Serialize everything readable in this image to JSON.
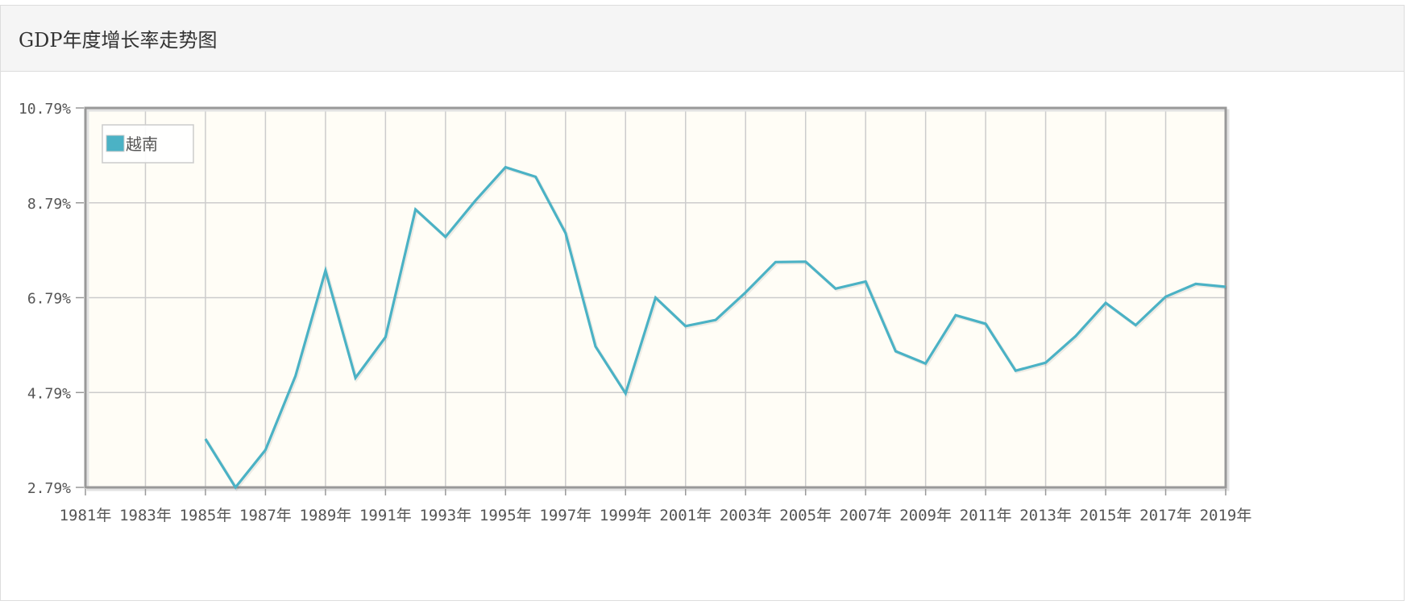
{
  "panel": {
    "title": "GDP年度增长率走势图"
  },
  "chart_data": {
    "type": "line",
    "title": "",
    "xlabel": "",
    "ylabel": "",
    "x": [
      1981,
      1982,
      1983,
      1984,
      1985,
      1986,
      1987,
      1988,
      1989,
      1990,
      1991,
      1992,
      1993,
      1994,
      1995,
      1996,
      1997,
      1998,
      1999,
      2000,
      2001,
      2002,
      2003,
      2004,
      2005,
      2006,
      2007,
      2008,
      2009,
      2010,
      2011,
      2012,
      2013,
      2014,
      2015,
      2016,
      2017,
      2018,
      2019
    ],
    "x_tick_labels": [
      "1981年",
      "1983年",
      "1985年",
      "1987年",
      "1989年",
      "1991年",
      "1993年",
      "1995年",
      "1997年",
      "1999年",
      "2001年",
      "2003年",
      "2005年",
      "2007年",
      "2009年",
      "2011年",
      "2013年",
      "2015年",
      "2017年",
      "2019年"
    ],
    "y_tick_labels": [
      "10.79%",
      "8.79%",
      "6.79%",
      "4.79%",
      "2.79%"
    ],
    "ylim": [
      2.79,
      10.79
    ],
    "y_ticks": [
      2.79,
      4.79,
      6.79,
      8.79,
      10.79
    ],
    "grid": true,
    "legend_position": "top-left",
    "series": [
      {
        "name": "越南",
        "color": "#4bb2c5",
        "values": [
          null,
          null,
          null,
          null,
          3.81,
          2.79,
          3.58,
          5.14,
          7.36,
          5.1,
          5.96,
          8.65,
          8.07,
          8.84,
          9.54,
          9.34,
          8.15,
          5.76,
          4.77,
          6.79,
          6.19,
          6.32,
          6.9,
          7.54,
          7.55,
          6.98,
          7.13,
          5.66,
          5.4,
          6.42,
          6.24,
          5.25,
          5.42,
          5.98,
          6.68,
          6.21,
          6.81,
          7.08,
          7.02
        ]
      }
    ]
  }
}
